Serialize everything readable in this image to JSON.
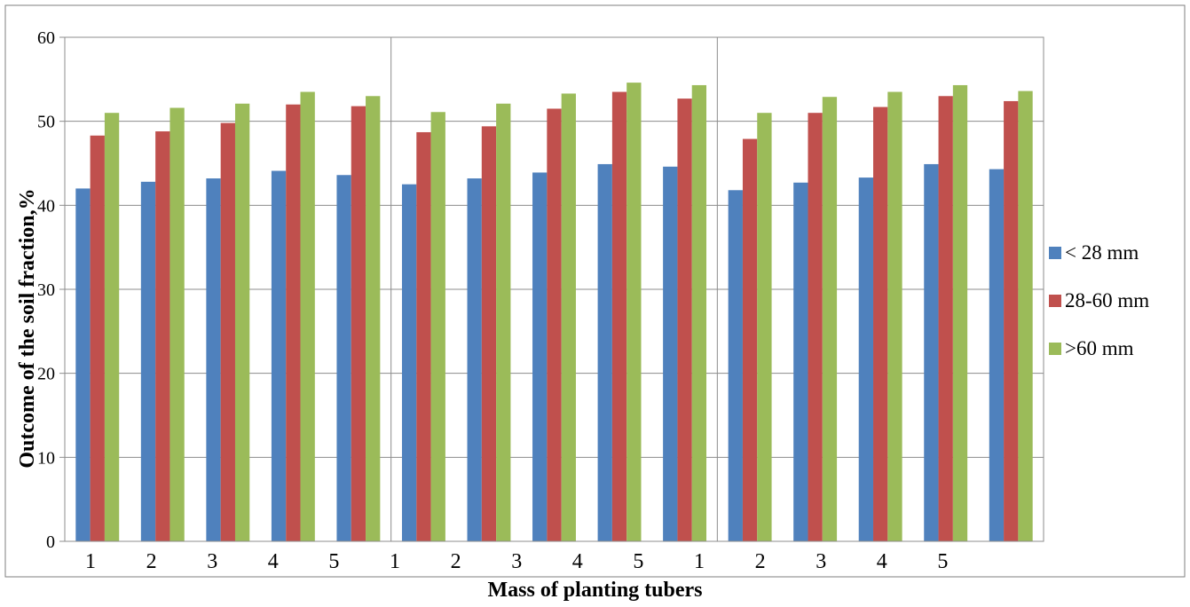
{
  "chart_data": {
    "type": "bar",
    "xlabel": "Mass of planting tubers",
    "ylabel": "Outcome of the soil fraction,%",
    "ylim": [
      0,
      60
    ],
    "yticks": [
      "0",
      "10",
      "20",
      "30",
      "40",
      "50",
      "60"
    ],
    "x_tick_labels": [
      "1",
      "2",
      "3",
      "4",
      "5",
      "1",
      "2",
      "3",
      "4",
      "5",
      "1",
      "2",
      "3",
      "4",
      "5"
    ],
    "group_count": 3,
    "categories_per_group": 5,
    "series": [
      {
        "name": "< 28 mm",
        "color": "#4F81BD",
        "values": [
          42.0,
          42.8,
          43.2,
          44.1,
          43.6,
          42.5,
          43.2,
          43.9,
          44.9,
          44.6,
          41.8,
          42.7,
          43.3,
          44.9,
          44.3
        ]
      },
      {
        "name": "28-60 mm",
        "color": "#C0504D",
        "values": [
          48.3,
          48.8,
          49.8,
          52.0,
          51.8,
          48.7,
          49.4,
          51.5,
          53.5,
          52.7,
          47.9,
          51.0,
          51.7,
          53.0,
          52.4
        ]
      },
      {
        "name": ">60 mm",
        "color": "#9BBB59",
        "values": [
          51.0,
          51.6,
          52.1,
          53.5,
          53.0,
          51.1,
          52.1,
          53.3,
          54.6,
          54.3,
          51.0,
          52.9,
          53.5,
          54.3,
          53.6
        ]
      }
    ],
    "grid": true,
    "legend_position": "right"
  }
}
